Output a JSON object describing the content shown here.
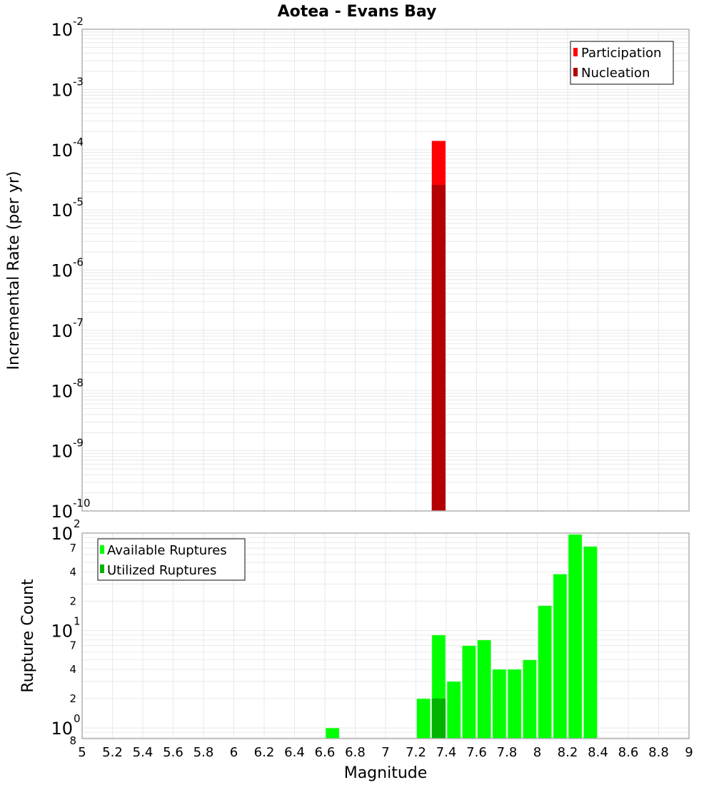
{
  "title": "Aotea - Evans Bay",
  "colors": {
    "participation": "#ff0000",
    "nucleation": "#b30000",
    "available": "#00ff00",
    "utilized": "#00b300",
    "grid": "#e8e8e8",
    "frame": "#b0b0b0"
  },
  "top_plot": {
    "ylabel": "Incremental Rate (per yr)",
    "legend": [
      {
        "label": "Participation",
        "color": "#ff0000"
      },
      {
        "label": "Nucleation",
        "color": "#b30000"
      }
    ],
    "y_ticks": [
      {
        "base": "10",
        "exp": "-2"
      },
      {
        "base": "10",
        "exp": "-3"
      },
      {
        "base": "10",
        "exp": "-4"
      },
      {
        "base": "10",
        "exp": "-5"
      },
      {
        "base": "10",
        "exp": "-6"
      },
      {
        "base": "10",
        "exp": "-7"
      },
      {
        "base": "10",
        "exp": "-8"
      },
      {
        "base": "10",
        "exp": "-9"
      },
      {
        "base": "10",
        "exp": "-10"
      }
    ]
  },
  "bottom_plot": {
    "ylabel": "Rupture Count",
    "xlabel": "Magnitude",
    "legend": [
      {
        "label": "Available Ruptures",
        "color": "#00ff00"
      },
      {
        "label": "Utilized Ruptures",
        "color": "#00b300"
      }
    ],
    "y_major_ticks": [
      {
        "base": "10",
        "exp": "2"
      },
      {
        "base": "10",
        "exp": "1"
      },
      {
        "base": "10",
        "exp": "0"
      }
    ],
    "y_minor_ticks": [
      "7",
      "4",
      "2",
      "7",
      "4",
      "2",
      "8"
    ]
  },
  "x_ticks": [
    "5",
    "5.2",
    "5.4",
    "5.6",
    "5.8",
    "6",
    "6.2",
    "6.4",
    "6.6",
    "6.8",
    "7",
    "7.2",
    "7.4",
    "7.6",
    "7.8",
    "8",
    "8.2",
    "8.4",
    "8.6",
    "8.8",
    "9"
  ],
  "chart_data": [
    {
      "type": "bar",
      "title": "Aotea - Evans Bay",
      "xlabel": "Magnitude",
      "ylabel": "Incremental Rate (per yr)",
      "yscale": "log",
      "xlim": [
        5,
        9
      ],
      "ylim": [
        1e-10,
        0.01
      ],
      "grid": true,
      "legend_position": "top-right",
      "bin_width": 0.1,
      "x": [
        7.35
      ],
      "series": [
        {
          "name": "Participation",
          "color": "#ff0000",
          "values": [
            0.00014
          ]
        },
        {
          "name": "Nucleation",
          "color": "#b30000",
          "values": [
            2.6e-05
          ]
        }
      ]
    },
    {
      "type": "bar",
      "xlabel": "Magnitude",
      "ylabel": "Rupture Count",
      "yscale": "log",
      "xlim": [
        5,
        9
      ],
      "ylim": [
        0.8,
        100
      ],
      "grid": true,
      "legend_position": "top-left",
      "bin_width": 0.1,
      "x": [
        6.65,
        7.25,
        7.35,
        7.45,
        7.55,
        7.65,
        7.75,
        7.85,
        7.95,
        8.05,
        8.15,
        8.25,
        8.35
      ],
      "series": [
        {
          "name": "Available Ruptures",
          "color": "#00ff00",
          "values": [
            1,
            2,
            9,
            3,
            7,
            8,
            4,
            4,
            5,
            18,
            38,
            97,
            73
          ]
        },
        {
          "name": "Utilized Ruptures",
          "color": "#00b300",
          "values": [
            0,
            0,
            2,
            0,
            0,
            0,
            0,
            0,
            0,
            0,
            0,
            0,
            0
          ]
        }
      ]
    }
  ]
}
